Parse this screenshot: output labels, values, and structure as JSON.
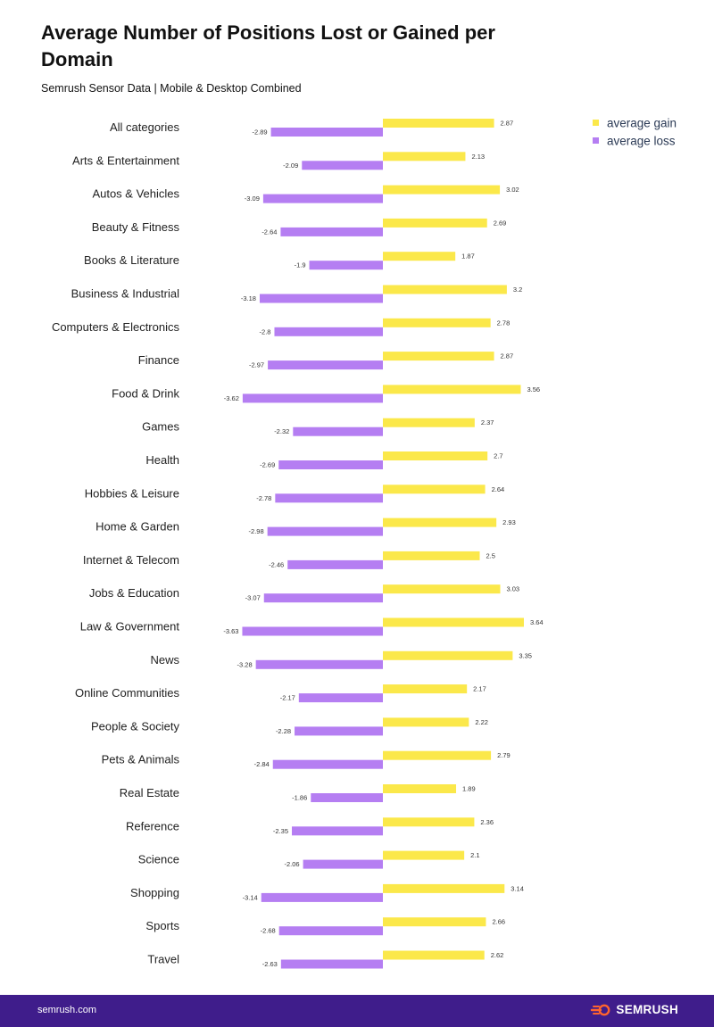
{
  "header": {
    "title": "Average Number of Positions Lost or Gained per Domain",
    "subtitle": "Semrush Sensor Data | Mobile & Desktop Combined"
  },
  "footer": {
    "url": "semrush.com",
    "brand": "SEMRUSH",
    "logo_icon": "semrush-fire-icon"
  },
  "colors": {
    "gain": "#fbe84a",
    "loss": "#b57ef2",
    "footer_bg": "#3f1d8b",
    "logo_orange": "#ff642d"
  },
  "chart_data": {
    "type": "bar",
    "orientation": "horizontal",
    "categories": [
      "All categories",
      "Arts & Entertainment",
      "Autos & Vehicles",
      "Beauty & Fitness",
      "Books & Literature",
      "Business & Industrial",
      "Computers & Electronics",
      "Finance",
      "Food & Drink",
      "Games",
      "Health",
      "Hobbies & Leisure",
      "Home & Garden",
      "Internet & Telecom",
      "Jobs & Education",
      "Law & Government",
      "News",
      "Online Communities",
      "People & Society",
      "Pets & Animals",
      "Real Estate",
      "Reference",
      "Science",
      "Shopping",
      "Sports",
      "Travel"
    ],
    "series": [
      {
        "name": "average gain",
        "color": "#fbe84a",
        "values": [
          2.87,
          2.13,
          3.02,
          2.69,
          1.87,
          3.2,
          2.78,
          2.87,
          3.56,
          2.37,
          2.7,
          2.64,
          2.93,
          2.5,
          3.03,
          3.64,
          3.35,
          2.17,
          2.22,
          2.79,
          1.89,
          2.36,
          2.1,
          3.14,
          2.66,
          2.62
        ]
      },
      {
        "name": "average loss",
        "color": "#b57ef2",
        "values": [
          -2.89,
          -2.09,
          -3.09,
          -2.64,
          -1.9,
          -3.18,
          -2.8,
          -2.97,
          -3.62,
          -2.32,
          -2.69,
          -2.78,
          -2.98,
          -2.46,
          -3.07,
          -3.63,
          -3.28,
          -2.17,
          -2.28,
          -2.84,
          -1.86,
          -2.35,
          -2.06,
          -3.14,
          -2.68,
          -2.63
        ]
      }
    ],
    "xlim": [
      -3.64,
      3.64
    ],
    "grid": false,
    "legend_position": "top-right"
  }
}
